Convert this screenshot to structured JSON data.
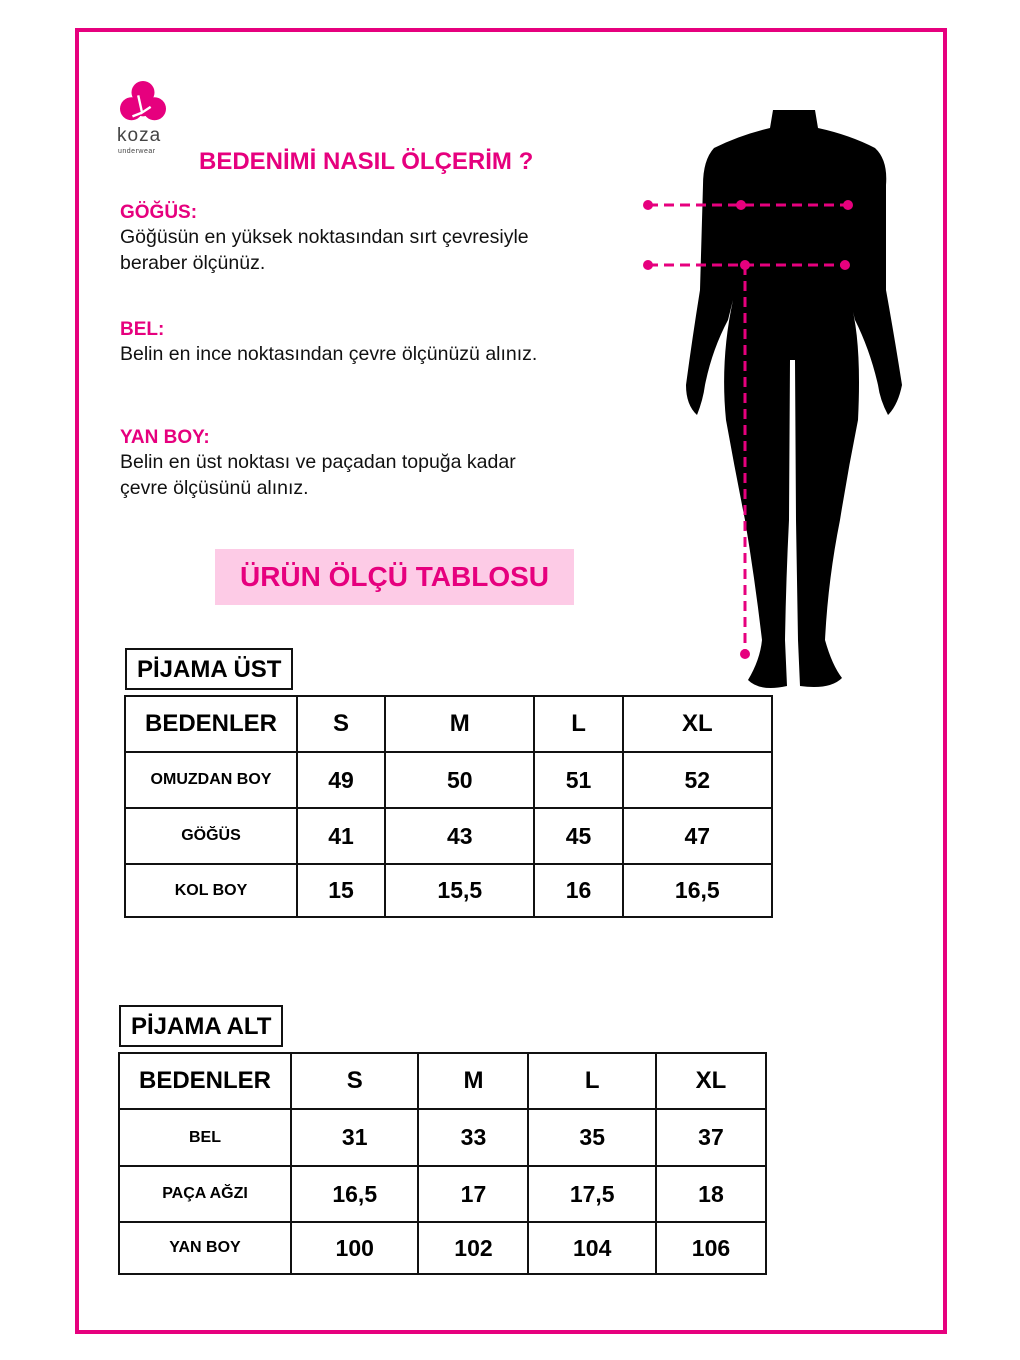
{
  "brand": {
    "name": "koza",
    "tagline": "underwear",
    "color": "#e6007e"
  },
  "title": "BEDENİMİ NASIL ÖLÇERİM ?",
  "sections": [
    {
      "heading": "GÖĞÜS:",
      "lines": [
        "Göğüsün en yüksek noktasından sırt çevresiyle",
        "beraber ölçünüz."
      ]
    },
    {
      "heading": "BEL:",
      "lines": [
        "Belin en ince noktasından çevre ölçünüzü alınız."
      ]
    },
    {
      "heading": "YAN BOY:",
      "lines": [
        "Belin en üst noktası ve paçadan topuğa kadar",
        "çevre ölçüsünü alınız."
      ]
    }
  ],
  "banner": "ÜRÜN ÖLÇÜ TABLOSU",
  "tables": [
    {
      "label": "PİJAMA ÜST",
      "header": [
        "BEDENLER",
        "S",
        "M",
        "L",
        "XL"
      ],
      "rows": [
        [
          "OMUZDAN BOY",
          "49",
          "50",
          "51",
          "52"
        ],
        [
          "GÖĞÜS",
          "41",
          "43",
          "45",
          "47"
        ],
        [
          "KOL BOY",
          "15",
          "15,5",
          "16",
          "16,5"
        ]
      ]
    },
    {
      "label": "PİJAMA ALT",
      "header": [
        "BEDENLER",
        "S",
        "M",
        "L",
        "XL"
      ],
      "rows": [
        [
          "BEL",
          "31",
          "33",
          "35",
          "37"
        ],
        [
          "PAÇA AĞZI",
          "16,5",
          "17",
          "17,5",
          "18"
        ],
        [
          "YAN BOY",
          "100",
          "102",
          "104",
          "106"
        ]
      ]
    }
  ],
  "illustration": "body-silhouette-with-measurement-lines"
}
